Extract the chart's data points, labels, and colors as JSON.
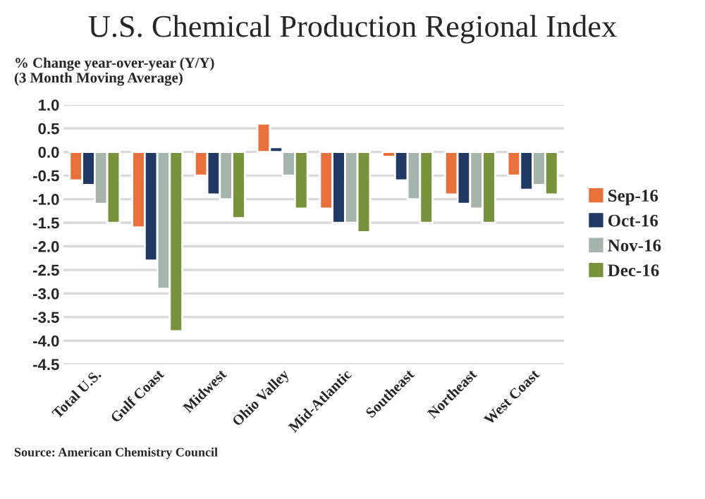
{
  "chart_data": {
    "type": "bar",
    "title": "U.S. Chemical Production Regional Index",
    "subtitle": "% Change year-over-year (Y/Y)\n(3 Month Moving Average)",
    "categories": [
      "Total U.S.",
      "Gulf Coast",
      "Midwest",
      "Ohio Valley",
      "Mid-Atlantic",
      "Southeast",
      "Northeast",
      "West Coast"
    ],
    "series": [
      {
        "name": "Sep-16",
        "color": "#e8703a",
        "values": [
          -0.6,
          -1.6,
          -0.5,
          0.6,
          -1.2,
          -0.1,
          -0.9,
          -0.5
        ]
      },
      {
        "name": "Oct-16",
        "color": "#203864",
        "values": [
          -0.7,
          -2.3,
          -0.9,
          0.1,
          -1.5,
          -0.6,
          -1.1,
          -0.8
        ]
      },
      {
        "name": "Nov-16",
        "color": "#a5b5ac",
        "values": [
          -1.1,
          -2.9,
          -1.0,
          -0.5,
          -1.5,
          -1.0,
          -1.2,
          -0.7
        ]
      },
      {
        "name": "Dec-16",
        "color": "#77933c",
        "values": [
          -1.5,
          -3.8,
          -1.4,
          -1.2,
          -1.7,
          -1.5,
          -1.5,
          -0.9
        ]
      }
    ],
    "ylim": [
      -4.5,
      1.0
    ],
    "yticks": [
      {
        "value": 1.0,
        "label": "1.0"
      },
      {
        "value": 0.5,
        "label": "0.5"
      },
      {
        "value": 0.0,
        "label": "0.0"
      },
      {
        "value": -0.5,
        "label": "-0.5"
      },
      {
        "value": -1.0,
        "label": "-1.0"
      },
      {
        "value": -1.5,
        "label": "-1.5"
      },
      {
        "value": -2.0,
        "label": "-2.0"
      },
      {
        "value": -2.5,
        "label": "-2.5"
      },
      {
        "value": -3.0,
        "label": "-3.0"
      },
      {
        "value": -3.5,
        "label": "-3.5"
      },
      {
        "value": -4.0,
        "label": "-4.0"
      },
      {
        "value": -4.5,
        "label": "-4.5"
      }
    ],
    "grid": "y",
    "legend": "right",
    "annotations": [
      "Source: American Chemistry Council"
    ]
  }
}
